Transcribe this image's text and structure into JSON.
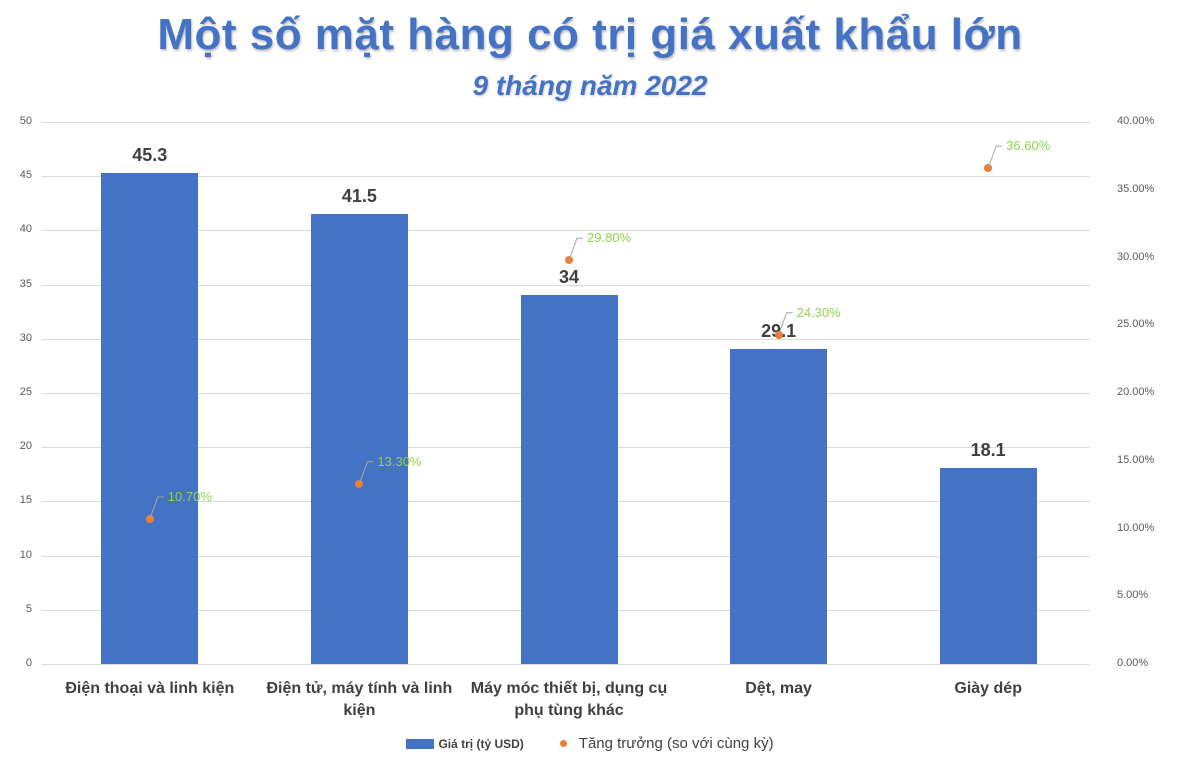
{
  "title": "Một số mặt hàng có trị giá xuất khẩu lớn",
  "subtitle": "9 tháng năm 2022",
  "colors": {
    "bar": "#4472C4",
    "point": "#ED7D31",
    "point_label": "#92D050",
    "title": "#4472C4"
  },
  "chart_data": {
    "type": "bar",
    "title": "Một số mặt hàng có trị giá xuất khẩu lớn",
    "subtitle": "9 tháng năm 2022",
    "categories": [
      "Điện thoại và linh kiện",
      "Điện tử, máy tính và linh kiện",
      "Máy móc thiết bị, dụng cụ phụ tùng khác",
      "Dệt, may",
      "Giày dép"
    ],
    "series": [
      {
        "name": "Giá trị (tỷ USD)",
        "type": "bar",
        "axis": "left",
        "values": [
          45.3,
          41.5,
          34,
          29.1,
          18.1
        ],
        "labels": [
          "45.3",
          "41.5",
          "34",
          "29.1",
          "18.1"
        ]
      },
      {
        "name": "Tăng trưởng (so với cùng kỳ)",
        "type": "scatter",
        "axis": "right",
        "values": [
          0.107,
          0.133,
          0.298,
          0.243,
          0.366
        ],
        "labels": [
          "10.70%",
          "13.30%",
          "29.80%",
          "24.30%",
          "36.60%"
        ]
      }
    ],
    "y_left": {
      "min": 0,
      "max": 50,
      "ticks": [
        "0",
        "5",
        "10",
        "15",
        "20",
        "25",
        "30",
        "35",
        "40",
        "45",
        "50"
      ]
    },
    "y_right": {
      "min": 0,
      "max": 0.4,
      "ticks": [
        "0.00%",
        "5.00%",
        "10.00%",
        "15.00%",
        "20.00%",
        "25.00%",
        "30.00%",
        "35.00%",
        "40.00%"
      ]
    },
    "grid": true,
    "legend_position": "bottom",
    "xlabel": "",
    "ylabel": ""
  },
  "categories_display": [
    [
      "Điện thoại và linh kiện"
    ],
    [
      "Điện tử, máy tính và linh",
      "kiện"
    ],
    [
      "Máy móc thiết bị, dụng cụ",
      "phụ tùng khác"
    ],
    [
      "Dệt, may"
    ],
    [
      "Giày dép"
    ]
  ],
  "legend": {
    "bar_label": "Giá trị (tỷ USD)",
    "point_label": "Tăng trưởng (so với cùng kỳ)"
  }
}
